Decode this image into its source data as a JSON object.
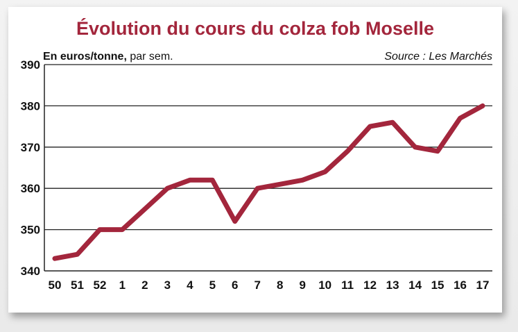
{
  "chart_data": {
    "type": "line",
    "title": "Évolution du cours du colza fob Moselle",
    "unit_label_bold": "En euros/tonne,",
    "unit_label_regular": " par sem.",
    "source": "Source : Les Marchés",
    "categories": [
      "50",
      "51",
      "52",
      "1",
      "2",
      "3",
      "4",
      "5",
      "6",
      "7",
      "8",
      "9",
      "10",
      "11",
      "12",
      "13",
      "14",
      "15",
      "16",
      "17"
    ],
    "series": [
      {
        "values": [
          343,
          344,
          350,
          350,
          355,
          360,
          362,
          362,
          352,
          360,
          361,
          362,
          364,
          369,
          375,
          376,
          370,
          369,
          377,
          380
        ]
      }
    ],
    "yticks": [
      340,
      350,
      360,
      370,
      380,
      390
    ],
    "ylim": [
      340,
      390
    ],
    "grid": "horizontal",
    "line_color": "#a3263c"
  }
}
